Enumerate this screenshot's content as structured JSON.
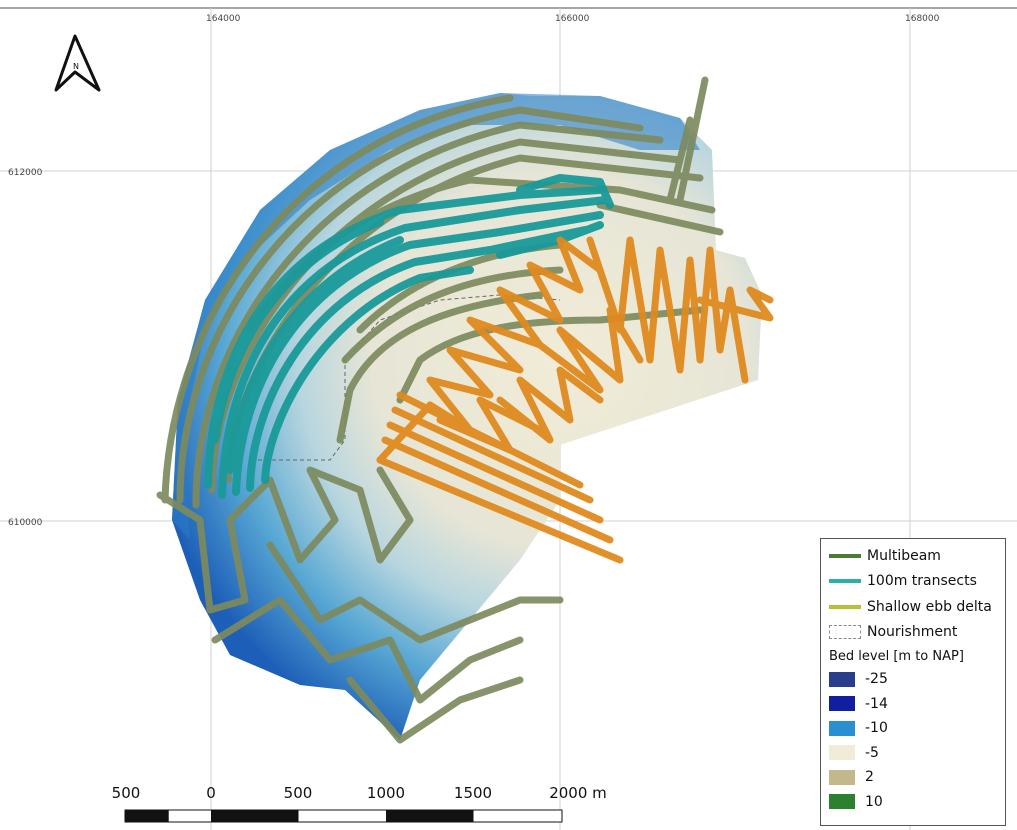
{
  "map": {
    "north_arrow_label": "N",
    "grid": {
      "x_labels": [
        "164000",
        "166000",
        "168000"
      ],
      "y_labels": [
        "612000",
        "610000"
      ]
    },
    "scale_bar": {
      "labels": [
        "500",
        "0",
        "500",
        "1000",
        "1500",
        "2000 m"
      ]
    },
    "legend": {
      "items": [
        {
          "label": "Multibeam",
          "color": "#4a7a36"
        },
        {
          "label": "100m transects",
          "color": "#2ab0a8"
        },
        {
          "label": "Shallow ebb delta",
          "color": "#b5c234"
        },
        {
          "label": "Nourishment",
          "color": "#888888"
        }
      ],
      "bed_title": "Bed level [m to NAP]",
      "bed_levels": [
        {
          "label": "-25",
          "color": "#283e8c"
        },
        {
          "label": "-14",
          "color": "#0f1fa0"
        },
        {
          "label": "-10",
          "color": "#2a8fd0"
        },
        {
          "label": "-5",
          "color": "#f1ecd7"
        },
        {
          "label": "2",
          "color": "#c3b88c"
        },
        {
          "label": "10",
          "color": "#2e8031"
        }
      ]
    },
    "track_colors": {
      "multibeam_track": "#7d8a5e",
      "transect_track": "#1a9a9a",
      "ebb_delta_track": "#e08a1e"
    }
  }
}
